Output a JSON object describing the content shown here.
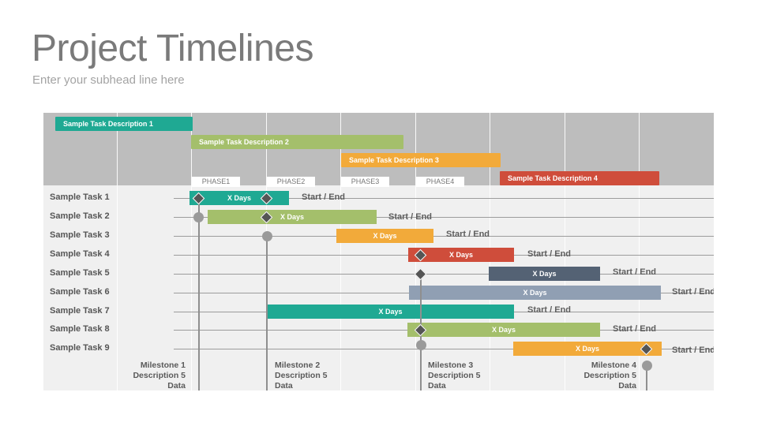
{
  "header": {
    "title": "Project Timelines",
    "subtitle": "Enter your subhead line here"
  },
  "colors": {
    "teal": "#1fa993",
    "green": "#a4bf6b",
    "orange": "#f2aa3a",
    "red": "#cf4d3b",
    "slate": "#546274",
    "grayblue": "#909fb3",
    "header_gray": "#bdbdbd",
    "body_gray": "#f0f0f0",
    "milestone_diamond": "#555555",
    "milestone_dot": "#9a9a9a"
  },
  "phases": [
    "PHASE1",
    "PHASE2",
    "PHASE3",
    "PHASE4"
  ],
  "top_tasks": [
    {
      "label": "Sample Task Description 1",
      "color": "#1fa993"
    },
    {
      "label": "Sample Task Description 2",
      "color": "#a4bf6b"
    },
    {
      "label": "Sample Task Description 3",
      "color": "#f2aa3a"
    },
    {
      "label": "Sample Task Description 4",
      "color": "#cf4d3b"
    }
  ],
  "tasks": [
    {
      "name": "Sample Task 1",
      "bar_label": "X Days",
      "end_label": "Start / End",
      "color": "#1fa993"
    },
    {
      "name": "Sample Task 2",
      "bar_label": "X Days",
      "end_label": "Start / End",
      "color": "#a4bf6b"
    },
    {
      "name": "Sample Task 3",
      "bar_label": "X Days",
      "end_label": "Start / End",
      "color": "#f2aa3a"
    },
    {
      "name": "Sample Task 4",
      "bar_label": "X Days",
      "end_label": "Start / End",
      "color": "#cf4d3b"
    },
    {
      "name": "Sample Task 5",
      "bar_label": "X Days",
      "end_label": "Start / End",
      "color": "#546274"
    },
    {
      "name": "Sample Task 6",
      "bar_label": "X Days",
      "end_label": "Start / End",
      "color": "#909fb3"
    },
    {
      "name": "Sample Task 7",
      "bar_label": "X Days",
      "end_label": "Start / End",
      "color": "#1fa993"
    },
    {
      "name": "Sample Task 8",
      "bar_label": "X Days",
      "end_label": "Start / End",
      "color": "#a4bf6b"
    },
    {
      "name": "Sample Task 9",
      "bar_label": "X Days",
      "end_label": "Start / End",
      "color": "#f2aa3a"
    }
  ],
  "milestones": [
    {
      "line1": "Milestone 1",
      "line2": "Description 5",
      "line3": "Data"
    },
    {
      "line1": "Milestone 2",
      "line2": "Description 5",
      "line3": "Data"
    },
    {
      "line1": "Milestone 3",
      "line2": "Description 5",
      "line3": "Data"
    },
    {
      "line1": "Milestone 4",
      "line2": "Description 5",
      "line3": "Data"
    }
  ]
}
